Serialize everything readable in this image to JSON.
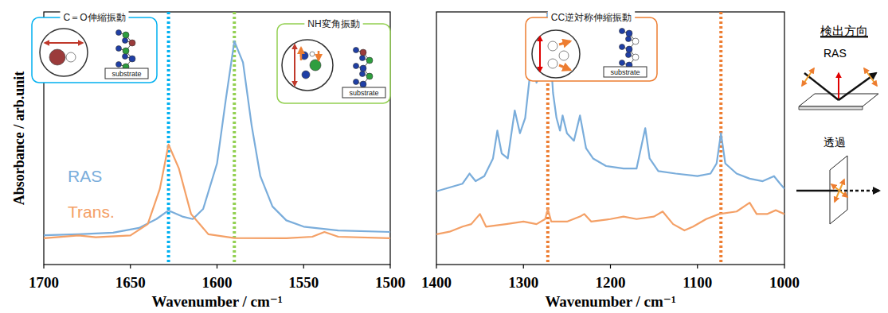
{
  "chart_data": [
    {
      "type": "line",
      "xlim": [
        1700,
        1500
      ],
      "xticks": [
        1700,
        1650,
        1600,
        1550,
        1500
      ],
      "ylim": [
        0,
        100
      ],
      "x_label": "Wavenumber / cm⁻¹",
      "y_label": "Absorbance / arb.unit",
      "tick_labels": "x",
      "grid": false,
      "series": [
        {
          "name": "RAS",
          "color": "#7aaddb",
          "x": [
            1700,
            1680,
            1660,
            1645,
            1635,
            1628,
            1620,
            1614,
            1608,
            1600,
            1595,
            1590,
            1585,
            1580,
            1575,
            1568,
            1560,
            1550,
            1530,
            1500
          ],
          "values": [
            11.6,
            12.0,
            12.6,
            14.5,
            18,
            21.4,
            19,
            18,
            22,
            40,
            65,
            88.4,
            80,
            55,
            35,
            23,
            17.5,
            15,
            13.5,
            12.9
          ]
        },
        {
          "name": "Trans.",
          "color": "#f4a066",
          "x": [
            1700,
            1680,
            1670,
            1650,
            1640,
            1633,
            1628,
            1622,
            1615,
            1605,
            1590,
            1560,
            1545,
            1538,
            1530,
            1500
          ],
          "values": [
            10.4,
            11.5,
            10.8,
            11.5,
            16,
            30,
            47.5,
            38,
            20,
            12,
            10.5,
            10.4,
            11,
            12.9,
            11,
            10.4
          ]
        }
      ],
      "annotations": [
        {
          "text": "C＝O伸縮振動",
          "x": [
            1628
          ],
          "color": "#00b0f0",
          "line_style": "dotted",
          "substrate": "substrate"
        },
        {
          "text": "NH変角振動",
          "x": [
            1590
          ],
          "color": "#92d050",
          "line_style": "dotted",
          "substrate": "substrate"
        }
      ]
    },
    {
      "type": "line",
      "xlim": [
        1400,
        1000
      ],
      "xticks": [
        1400,
        1300,
        1200,
        1100,
        1000
      ],
      "ylim": [
        0,
        100
      ],
      "x_label": "Wavenumber / cm⁻¹",
      "tick_labels": "x",
      "grid": false,
      "series": [
        {
          "color": "#7aaddb",
          "x": [
            1400,
            1385,
            1370,
            1362,
            1355,
            1345,
            1335,
            1330,
            1325,
            1318,
            1310,
            1304,
            1298,
            1290,
            1285,
            1280,
            1272,
            1266,
            1262,
            1258,
            1255,
            1250,
            1242,
            1235,
            1228,
            1220,
            1205,
            1185,
            1170,
            1160,
            1155,
            1145,
            1125,
            1100,
            1085,
            1078,
            1073,
            1068,
            1055,
            1040,
            1025,
            1012,
            1005,
            1000
          ],
          "values": [
            29,
            30.5,
            32,
            36,
            33,
            35,
            42,
            53,
            44,
            42,
            61,
            52,
            58,
            83,
            72,
            76,
            100,
            68,
            58,
            53,
            59,
            52,
            49,
            59,
            46,
            42,
            39,
            38,
            38,
            54,
            42,
            37,
            36,
            35,
            36,
            40,
            52,
            40,
            36,
            34,
            33,
            35,
            32,
            30
          ]
        },
        {
          "color": "#f4a066",
          "x": [
            1400,
            1385,
            1370,
            1360,
            1350,
            1343,
            1320,
            1300,
            1285,
            1275,
            1272,
            1268,
            1250,
            1235,
            1230,
            1222,
            1200,
            1185,
            1170,
            1150,
            1140,
            1128,
            1115,
            1105,
            1090,
            1075,
            1055,
            1040,
            1032,
            1020,
            1010,
            1000
          ],
          "values": [
            12,
            13,
            15,
            16,
            20,
            15,
            16,
            17,
            16,
            18,
            22,
            17,
            17,
            19,
            20,
            17,
            18,
            19,
            18,
            19,
            21,
            16,
            13.5,
            15,
            18,
            20,
            21,
            24.5,
            20,
            20,
            21.5,
            20
          ]
        }
      ],
      "annotations": [
        {
          "text": "CC逆対称伸縮振動",
          "x": [
            1272,
            1073
          ],
          "color": "#ed7d31",
          "line_style": "dotted",
          "substrate": "substrate"
        }
      ]
    }
  ],
  "detection": {
    "title": "検出方向",
    "items": [
      "RAS",
      "透過"
    ]
  }
}
